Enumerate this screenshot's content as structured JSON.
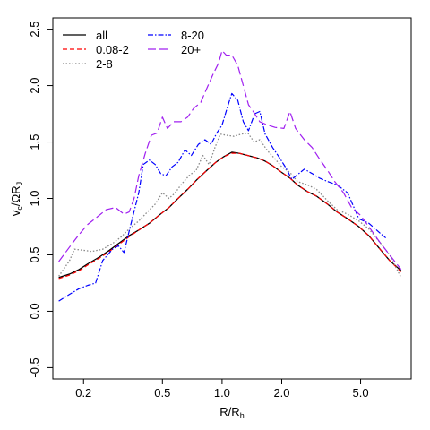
{
  "chart_data": {
    "type": "line",
    "xlabel": "R/R",
    "xlabel_sub": "h",
    "ylabel": "v",
    "ylabel_sub": "c",
    "ylabel_rest": "/ΩR",
    "ylabel_sub2": "J",
    "x_scale": "log",
    "xlim": [
      0.14,
      9.0
    ],
    "ylim": [
      -0.6,
      2.6
    ],
    "xticks": [
      {
        "value": 0.2,
        "label": "0.2"
      },
      {
        "value": 0.5,
        "label": "0.5"
      },
      {
        "value": 1.0,
        "label": "1.0"
      },
      {
        "value": 2.0,
        "label": "2.0"
      },
      {
        "value": 5.0,
        "label": "5.0"
      }
    ],
    "yticks": [
      {
        "value": -0.5,
        "label": "-0.5"
      },
      {
        "value": 0.0,
        "label": "0.0"
      },
      {
        "value": 0.5,
        "label": "0.5"
      },
      {
        "value": 1.0,
        "label": "1.0"
      },
      {
        "value": 1.5,
        "label": "1.5"
      },
      {
        "value": 2.0,
        "label": "2.0"
      },
      {
        "value": 2.5,
        "label": "2.5"
      }
    ],
    "grid": false,
    "legend_position": "top-left",
    "series": [
      {
        "name": "all",
        "color": "#000000",
        "dash": "",
        "width": 1.3,
        "points": [
          [
            0.15,
            0.3
          ],
          [
            0.17,
            0.33
          ],
          [
            0.19,
            0.37
          ],
          [
            0.21,
            0.42
          ],
          [
            0.24,
            0.48
          ],
          [
            0.27,
            0.54
          ],
          [
            0.3,
            0.6
          ],
          [
            0.34,
            0.67
          ],
          [
            0.38,
            0.72
          ],
          [
            0.43,
            0.78
          ],
          [
            0.48,
            0.85
          ],
          [
            0.54,
            0.92
          ],
          [
            0.6,
            1.0
          ],
          [
            0.67,
            1.08
          ],
          [
            0.75,
            1.17
          ],
          [
            0.84,
            1.25
          ],
          [
            0.93,
            1.32
          ],
          [
            1.02,
            1.37
          ],
          [
            1.12,
            1.41
          ],
          [
            1.22,
            1.4
          ],
          [
            1.35,
            1.38
          ],
          [
            1.5,
            1.36
          ],
          [
            1.65,
            1.33
          ],
          [
            1.8,
            1.29
          ],
          [
            2.0,
            1.23
          ],
          [
            2.2,
            1.18
          ],
          [
            2.4,
            1.12
          ],
          [
            2.7,
            1.06
          ],
          [
            3.0,
            1.02
          ],
          [
            3.4,
            0.95
          ],
          [
            3.8,
            0.88
          ],
          [
            4.3,
            0.82
          ],
          [
            4.9,
            0.75
          ],
          [
            5.5,
            0.67
          ],
          [
            6.2,
            0.56
          ],
          [
            7.0,
            0.45
          ],
          [
            8.0,
            0.36
          ]
        ]
      },
      {
        "name": "0.08-2",
        "color": "#ff0000",
        "dash": "5,3",
        "width": 1.2,
        "points": [
          [
            0.15,
            0.29
          ],
          [
            0.17,
            0.32
          ],
          [
            0.19,
            0.36
          ],
          [
            0.21,
            0.41
          ],
          [
            0.24,
            0.47
          ],
          [
            0.27,
            0.53
          ],
          [
            0.3,
            0.59
          ],
          [
            0.34,
            0.66
          ],
          [
            0.38,
            0.72
          ],
          [
            0.43,
            0.78
          ],
          [
            0.48,
            0.85
          ],
          [
            0.54,
            0.92
          ],
          [
            0.6,
            1.0
          ],
          [
            0.67,
            1.08
          ],
          [
            0.75,
            1.17
          ],
          [
            0.84,
            1.25
          ],
          [
            0.93,
            1.32
          ],
          [
            1.02,
            1.37
          ],
          [
            1.12,
            1.4
          ],
          [
            1.22,
            1.4
          ],
          [
            1.35,
            1.38
          ],
          [
            1.5,
            1.36
          ],
          [
            1.65,
            1.33
          ],
          [
            1.8,
            1.29
          ],
          [
            2.0,
            1.23
          ],
          [
            2.2,
            1.18
          ],
          [
            2.4,
            1.12
          ],
          [
            2.7,
            1.06
          ],
          [
            3.0,
            1.02
          ],
          [
            3.4,
            0.95
          ],
          [
            3.8,
            0.88
          ],
          [
            4.3,
            0.82
          ],
          [
            4.9,
            0.75
          ],
          [
            5.5,
            0.67
          ],
          [
            6.2,
            0.56
          ],
          [
            7.0,
            0.45
          ],
          [
            8.0,
            0.35
          ]
        ]
      },
      {
        "name": "2-8",
        "color": "#888888",
        "dash": "1.5,2",
        "width": 1.3,
        "points": [
          [
            0.15,
            0.31
          ],
          [
            0.17,
            0.45
          ],
          [
            0.18,
            0.55
          ],
          [
            0.2,
            0.54
          ],
          [
            0.22,
            0.53
          ],
          [
            0.25,
            0.55
          ],
          [
            0.28,
            0.6
          ],
          [
            0.31,
            0.66
          ],
          [
            0.34,
            0.73
          ],
          [
            0.38,
            0.8
          ],
          [
            0.42,
            0.88
          ],
          [
            0.46,
            0.95
          ],
          [
            0.5,
            1.05
          ],
          [
            0.54,
            1.0
          ],
          [
            0.58,
            1.05
          ],
          [
            0.62,
            1.12
          ],
          [
            0.68,
            1.2
          ],
          [
            0.74,
            1.25
          ],
          [
            0.8,
            1.38
          ],
          [
            0.86,
            1.3
          ],
          [
            0.92,
            1.45
          ],
          [
            0.98,
            1.57
          ],
          [
            1.05,
            1.56
          ],
          [
            1.15,
            1.55
          ],
          [
            1.25,
            1.57
          ],
          [
            1.35,
            1.58
          ],
          [
            1.45,
            1.5
          ],
          [
            1.55,
            1.52
          ],
          [
            1.7,
            1.42
          ],
          [
            1.85,
            1.35
          ],
          [
            2.0,
            1.28
          ],
          [
            2.2,
            1.23
          ],
          [
            2.4,
            1.15
          ],
          [
            2.7,
            1.12
          ],
          [
            3.0,
            1.08
          ],
          [
            3.4,
            0.98
          ],
          [
            3.8,
            0.9
          ],
          [
            4.3,
            0.86
          ],
          [
            4.9,
            0.8
          ],
          [
            5.5,
            0.73
          ],
          [
            6.2,
            0.62
          ],
          [
            7.0,
            0.5
          ],
          [
            8.0,
            0.3
          ]
        ]
      },
      {
        "name": "8-20",
        "color": "#0000ff",
        "dash": "6,2,1.5,2",
        "width": 1.2,
        "points": [
          [
            0.15,
            0.09
          ],
          [
            0.17,
            0.15
          ],
          [
            0.19,
            0.2
          ],
          [
            0.21,
            0.23
          ],
          [
            0.23,
            0.25
          ],
          [
            0.25,
            0.45
          ],
          [
            0.28,
            0.55
          ],
          [
            0.3,
            0.58
          ],
          [
            0.32,
            0.52
          ],
          [
            0.35,
            0.8
          ],
          [
            0.38,
            1.05
          ],
          [
            0.4,
            1.3
          ],
          [
            0.43,
            1.34
          ],
          [
            0.46,
            1.3
          ],
          [
            0.49,
            1.22
          ],
          [
            0.52,
            1.2
          ],
          [
            0.56,
            1.28
          ],
          [
            0.6,
            1.32
          ],
          [
            0.65,
            1.43
          ],
          [
            0.7,
            1.38
          ],
          [
            0.76,
            1.48
          ],
          [
            0.82,
            1.52
          ],
          [
            0.88,
            1.48
          ],
          [
            0.94,
            1.58
          ],
          [
            1.0,
            1.65
          ],
          [
            1.06,
            1.8
          ],
          [
            1.12,
            1.93
          ],
          [
            1.2,
            1.87
          ],
          [
            1.28,
            1.68
          ],
          [
            1.36,
            1.6
          ],
          [
            1.46,
            1.75
          ],
          [
            1.55,
            1.77
          ],
          [
            1.65,
            1.57
          ],
          [
            1.8,
            1.45
          ],
          [
            1.95,
            1.36
          ],
          [
            2.1,
            1.27
          ],
          [
            2.25,
            1.17
          ],
          [
            2.4,
            1.21
          ],
          [
            2.6,
            1.26
          ],
          [
            2.85,
            1.22
          ],
          [
            3.1,
            1.18
          ],
          [
            3.4,
            1.15
          ],
          [
            3.8,
            1.12
          ],
          [
            4.3,
            1.05
          ],
          [
            4.9,
            0.82
          ],
          [
            5.5,
            0.78
          ],
          [
            6.2,
            0.7
          ],
          [
            6.7,
            0.65
          ]
        ]
      },
      {
        "name": "20+",
        "color": "#a020f0",
        "dash": "9,4",
        "width": 1.2,
        "points": [
          [
            0.15,
            0.44
          ],
          [
            0.17,
            0.57
          ],
          [
            0.19,
            0.68
          ],
          [
            0.21,
            0.77
          ],
          [
            0.24,
            0.85
          ],
          [
            0.26,
            0.9
          ],
          [
            0.29,
            0.92
          ],
          [
            0.32,
            0.86
          ],
          [
            0.34,
            0.88
          ],
          [
            0.36,
            1.0
          ],
          [
            0.38,
            1.2
          ],
          [
            0.41,
            1.4
          ],
          [
            0.44,
            1.56
          ],
          [
            0.47,
            1.58
          ],
          [
            0.5,
            1.72
          ],
          [
            0.53,
            1.62
          ],
          [
            0.57,
            1.68
          ],
          [
            0.62,
            1.68
          ],
          [
            0.67,
            1.72
          ],
          [
            0.72,
            1.8
          ],
          [
            0.78,
            1.85
          ],
          [
            0.84,
            1.98
          ],
          [
            0.9,
            2.1
          ],
          [
            0.96,
            2.2
          ],
          [
            1.0,
            2.31
          ],
          [
            1.05,
            2.27
          ],
          [
            1.12,
            2.27
          ],
          [
            1.2,
            2.18
          ],
          [
            1.28,
            2.0
          ],
          [
            1.36,
            1.83
          ],
          [
            1.45,
            1.76
          ],
          [
            1.55,
            1.68
          ],
          [
            1.7,
            1.65
          ],
          [
            1.85,
            1.63
          ],
          [
            2.05,
            1.62
          ],
          [
            2.2,
            1.77
          ],
          [
            2.35,
            1.62
          ],
          [
            2.6,
            1.52
          ],
          [
            2.85,
            1.45
          ],
          [
            3.1,
            1.35
          ],
          [
            3.4,
            1.25
          ],
          [
            3.7,
            1.15
          ],
          [
            4.1,
            1.05
          ],
          [
            4.5,
            0.92
          ],
          [
            5.0,
            0.85
          ],
          [
            5.5,
            0.75
          ],
          [
            6.2,
            0.62
          ],
          [
            7.0,
            0.5
          ],
          [
            8.0,
            0.37
          ]
        ]
      }
    ]
  }
}
